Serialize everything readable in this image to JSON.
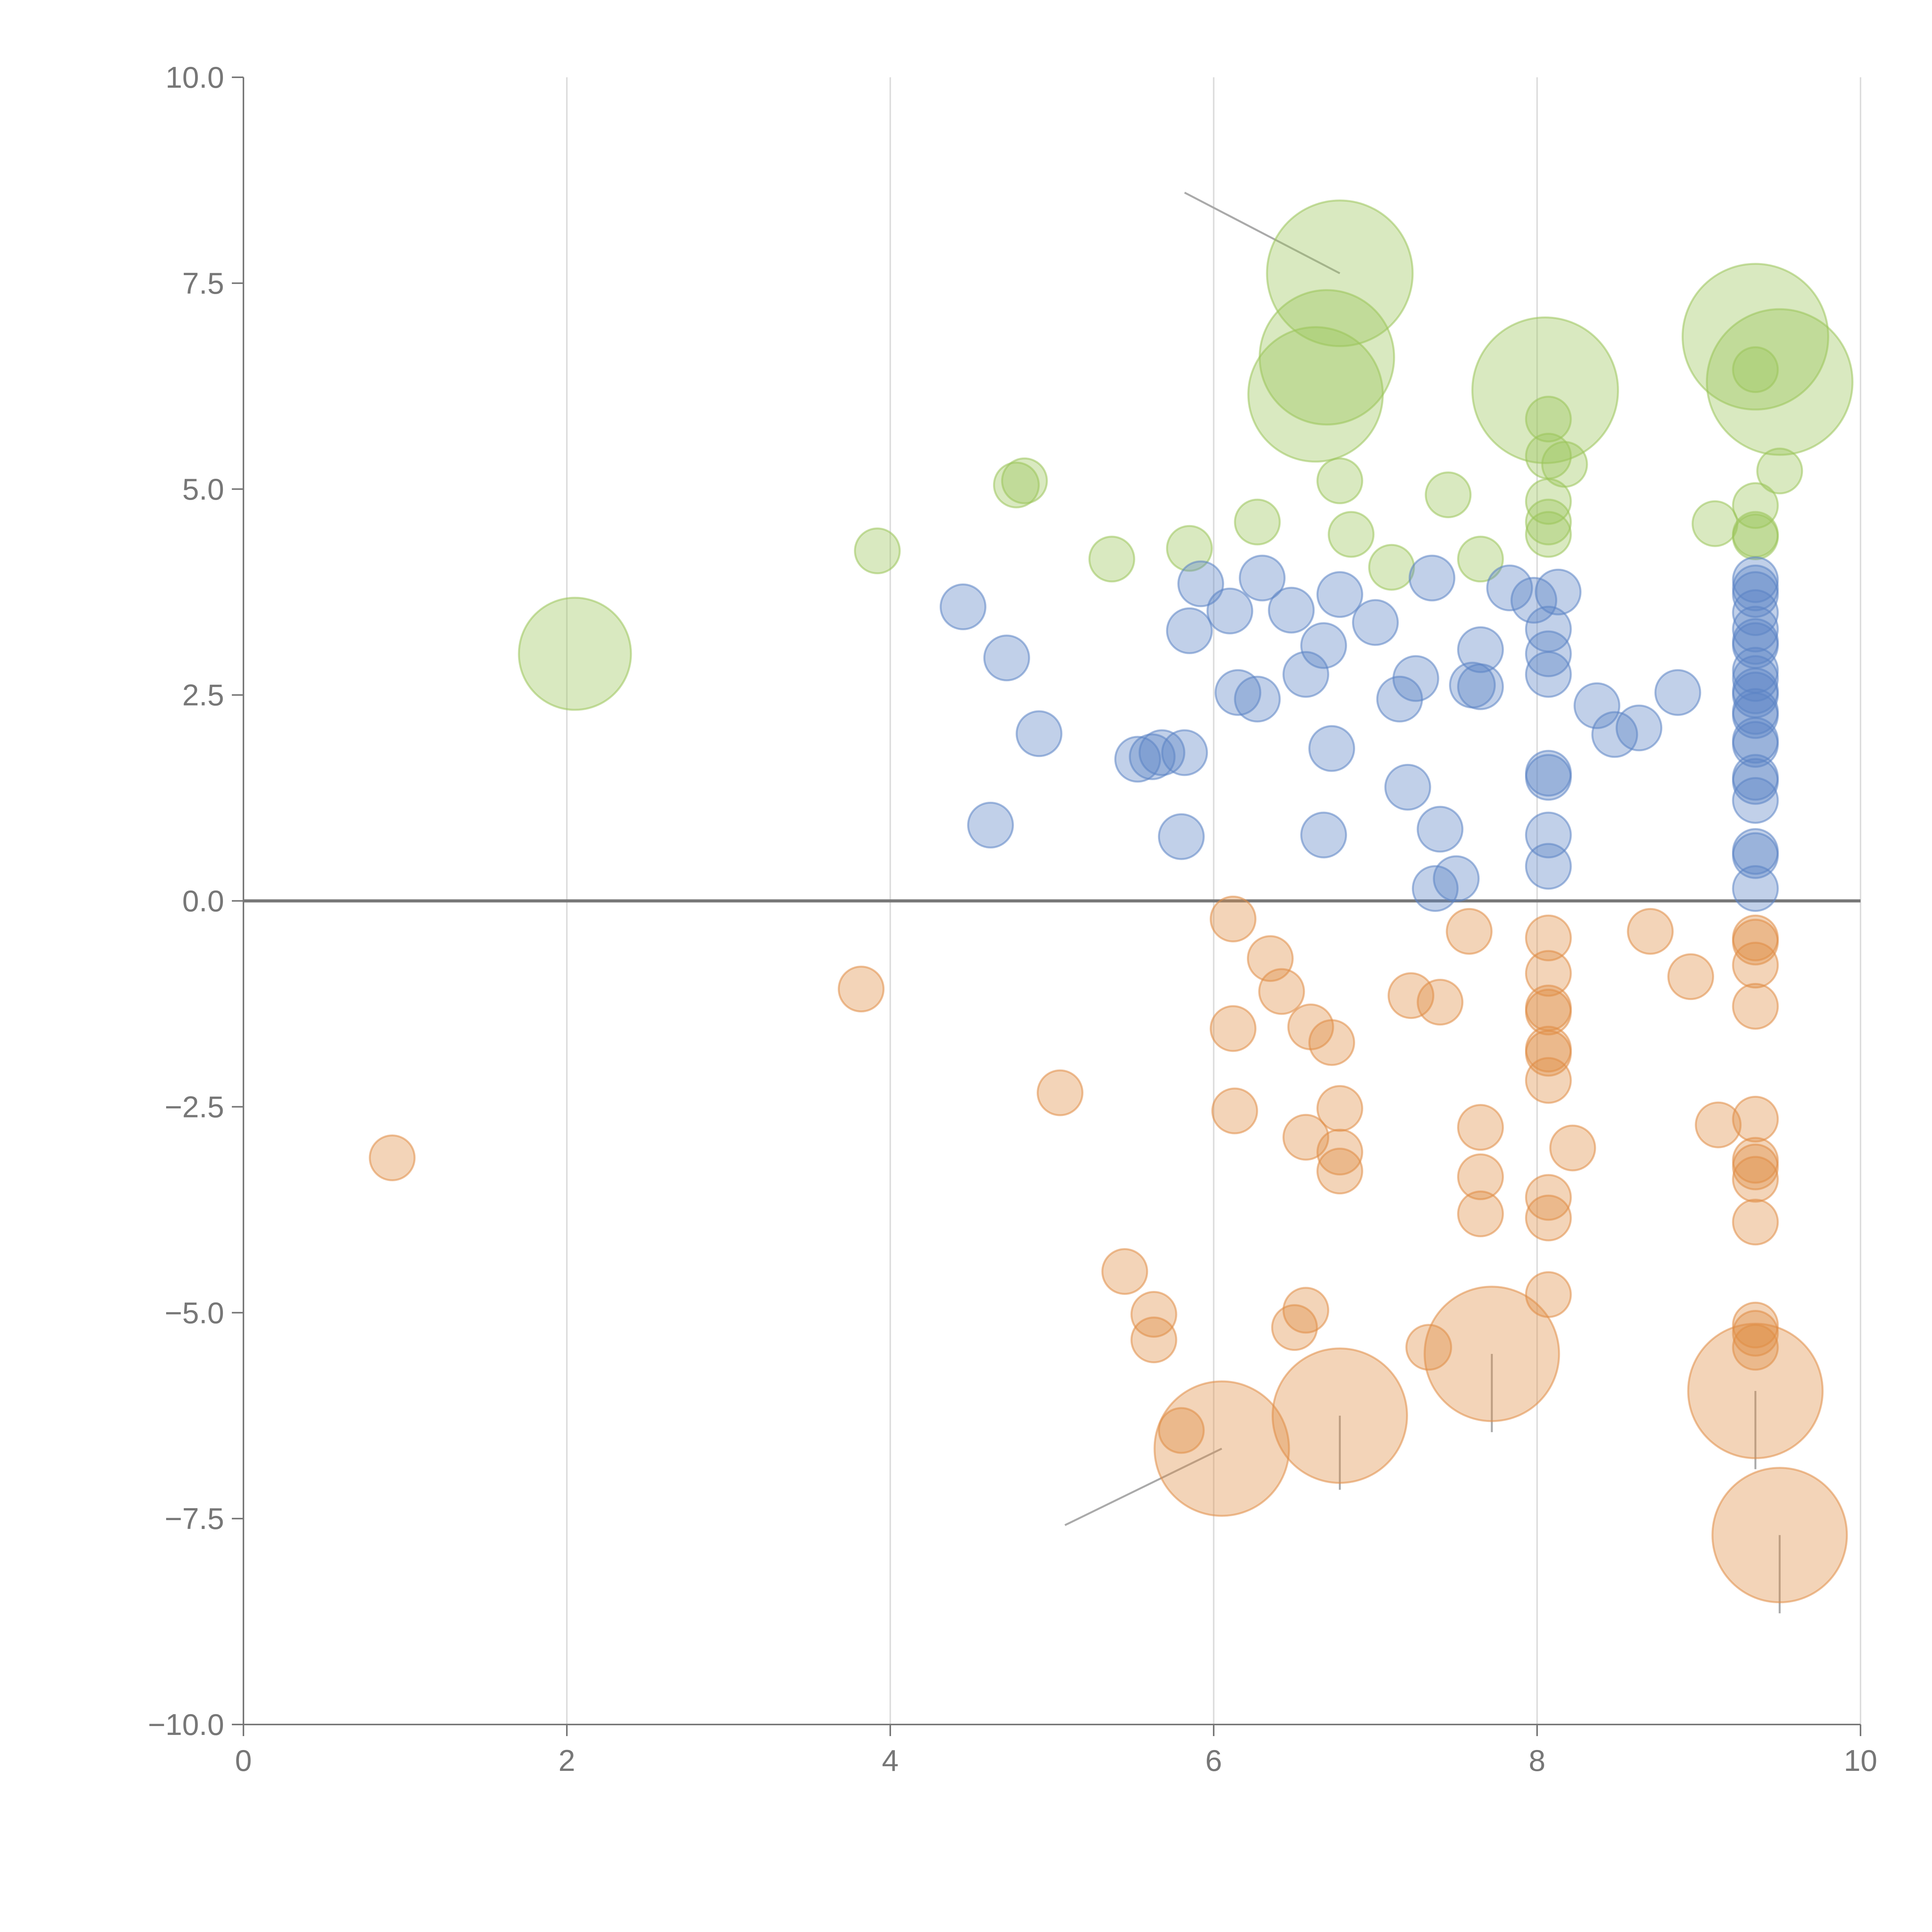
{
  "chart_data": {
    "type": "scatter",
    "title": "",
    "xlabel": "",
    "ylabel": "",
    "xlim": [
      0,
      10
    ],
    "ylim": [
      -10,
      10
    ],
    "grid": "vertical",
    "x_ticks": [
      "0",
      "2",
      "4",
      "6",
      "8",
      "10"
    ],
    "x_tick_values": [
      0,
      2,
      4,
      6,
      8,
      10
    ],
    "y_ticks": [
      "10.0",
      "7.5",
      "5.0",
      "2.5",
      "0.0",
      "−2.5",
      "−5.0",
      "−7.5",
      "−10.0"
    ],
    "y_tick_values": [
      10,
      7.5,
      5,
      2.5,
      0,
      -2.5,
      -5,
      -7.5,
      -10
    ],
    "colors": {
      "green": "#9bc45a",
      "blue": "#5b84c4",
      "orange": "#e08d45",
      "axis": "#777777",
      "grid": "#dddddd",
      "zero_line": "#777777",
      "leader_line": "#aaaaaa"
    },
    "series": [
      {
        "name": "green",
        "color": "#9bc45a",
        "points": [
          {
            "x": 2.05,
            "y": 3.0,
            "size": 10
          },
          {
            "x": 3.92,
            "y": 4.25,
            "size": 4
          },
          {
            "x": 4.78,
            "y": 5.05,
            "size": 4
          },
          {
            "x": 4.83,
            "y": 5.1,
            "size": 4
          },
          {
            "x": 5.37,
            "y": 4.15,
            "size": 4
          },
          {
            "x": 5.85,
            "y": 4.28,
            "size": 4
          },
          {
            "x": 6.27,
            "y": 4.6,
            "size": 4
          },
          {
            "x": 6.63,
            "y": 6.15,
            "size": 12
          },
          {
            "x": 6.7,
            "y": 6.6,
            "size": 12
          },
          {
            "x": 6.78,
            "y": 7.62,
            "size": 13
          },
          {
            "x": 6.78,
            "y": 5.1,
            "size": 4
          },
          {
            "x": 6.85,
            "y": 4.45,
            "size": 4
          },
          {
            "x": 7.1,
            "y": 4.05,
            "size": 4
          },
          {
            "x": 7.45,
            "y": 4.93,
            "size": 4
          },
          {
            "x": 7.65,
            "y": 4.15,
            "size": 4
          },
          {
            "x": 8.05,
            "y": 6.2,
            "size": 13
          },
          {
            "x": 8.07,
            "y": 5.85,
            "size": 4
          },
          {
            "x": 8.07,
            "y": 5.4,
            "size": 4
          },
          {
            "x": 8.07,
            "y": 4.85,
            "size": 4
          },
          {
            "x": 8.07,
            "y": 4.6,
            "size": 4
          },
          {
            "x": 8.07,
            "y": 4.45,
            "size": 4
          },
          {
            "x": 8.17,
            "y": 5.3,
            "size": 4
          },
          {
            "x": 9.1,
            "y": 4.58,
            "size": 4
          },
          {
            "x": 9.35,
            "y": 6.85,
            "size": 13
          },
          {
            "x": 9.35,
            "y": 6.45,
            "size": 4
          },
          {
            "x": 9.35,
            "y": 4.8,
            "size": 4
          },
          {
            "x": 9.35,
            "y": 4.45,
            "size": 4
          },
          {
            "x": 9.35,
            "y": 4.42,
            "size": 4
          },
          {
            "x": 9.5,
            "y": 6.3,
            "size": 13
          },
          {
            "x": 9.5,
            "y": 5.22,
            "size": 4
          }
        ]
      },
      {
        "name": "blue",
        "color": "#5b84c4",
        "points": [
          {
            "x": 4.45,
            "y": 3.57,
            "size": 4
          },
          {
            "x": 4.62,
            "y": 0.92,
            "size": 4
          },
          {
            "x": 4.72,
            "y": 2.95,
            "size": 4
          },
          {
            "x": 4.92,
            "y": 2.03,
            "size": 4
          },
          {
            "x": 5.53,
            "y": 1.72,
            "size": 4
          },
          {
            "x": 5.62,
            "y": 1.75,
            "size": 4
          },
          {
            "x": 5.68,
            "y": 1.8,
            "size": 4
          },
          {
            "x": 5.8,
            "y": 0.78,
            "size": 4
          },
          {
            "x": 5.82,
            "y": 1.8,
            "size": 4
          },
          {
            "x": 5.85,
            "y": 3.28,
            "size": 4
          },
          {
            "x": 5.92,
            "y": 3.85,
            "size": 4
          },
          {
            "x": 6.1,
            "y": 3.52,
            "size": 4
          },
          {
            "x": 6.15,
            "y": 2.53,
            "size": 4
          },
          {
            "x": 6.27,
            "y": 2.45,
            "size": 4
          },
          {
            "x": 6.3,
            "y": 3.92,
            "size": 4
          },
          {
            "x": 6.48,
            "y": 3.53,
            "size": 4
          },
          {
            "x": 6.57,
            "y": 2.75,
            "size": 4
          },
          {
            "x": 6.68,
            "y": 3.1,
            "size": 4
          },
          {
            "x": 6.68,
            "y": 0.8,
            "size": 4
          },
          {
            "x": 6.73,
            "y": 1.85,
            "size": 4
          },
          {
            "x": 6.78,
            "y": 3.72,
            "size": 4
          },
          {
            "x": 7.0,
            "y": 3.38,
            "size": 4
          },
          {
            "x": 7.15,
            "y": 2.45,
            "size": 4
          },
          {
            "x": 7.2,
            "y": 1.38,
            "size": 4
          },
          {
            "x": 7.25,
            "y": 2.7,
            "size": 4
          },
          {
            "x": 7.35,
            "y": 3.92,
            "size": 4
          },
          {
            "x": 7.37,
            "y": 0.15,
            "size": 4
          },
          {
            "x": 7.4,
            "y": 0.87,
            "size": 4
          },
          {
            "x": 7.5,
            "y": 0.27,
            "size": 4
          },
          {
            "x": 7.6,
            "y": 2.62,
            "size": 4
          },
          {
            "x": 7.65,
            "y": 2.6,
            "size": 4
          },
          {
            "x": 7.65,
            "y": 3.05,
            "size": 4
          },
          {
            "x": 7.83,
            "y": 3.8,
            "size": 4
          },
          {
            "x": 7.98,
            "y": 3.65,
            "size": 4
          },
          {
            "x": 8.07,
            "y": 3.3,
            "size": 4
          },
          {
            "x": 8.07,
            "y": 3.0,
            "size": 4
          },
          {
            "x": 8.07,
            "y": 2.75,
            "size": 4
          },
          {
            "x": 8.07,
            "y": 1.55,
            "size": 4
          },
          {
            "x": 8.07,
            "y": 1.5,
            "size": 4
          },
          {
            "x": 8.07,
            "y": 0.8,
            "size": 4
          },
          {
            "x": 8.07,
            "y": 0.42,
            "size": 4
          },
          {
            "x": 8.13,
            "y": 3.75,
            "size": 4
          },
          {
            "x": 8.37,
            "y": 2.37,
            "size": 4
          },
          {
            "x": 8.48,
            "y": 2.02,
            "size": 4
          },
          {
            "x": 8.63,
            "y": 2.1,
            "size": 4
          },
          {
            "x": 8.87,
            "y": 2.53,
            "size": 4
          },
          {
            "x": 9.35,
            "y": 3.9,
            "size": 4
          },
          {
            "x": 9.35,
            "y": 3.8,
            "size": 4
          },
          {
            "x": 9.35,
            "y": 3.72,
            "size": 4
          },
          {
            "x": 9.35,
            "y": 3.5,
            "size": 4
          },
          {
            "x": 9.35,
            "y": 3.3,
            "size": 4
          },
          {
            "x": 9.35,
            "y": 3.15,
            "size": 4
          },
          {
            "x": 9.35,
            "y": 3.1,
            "size": 4
          },
          {
            "x": 9.35,
            "y": 2.8,
            "size": 4
          },
          {
            "x": 9.35,
            "y": 2.7,
            "size": 4
          },
          {
            "x": 9.35,
            "y": 2.55,
            "size": 4
          },
          {
            "x": 9.35,
            "y": 2.5,
            "size": 4
          },
          {
            "x": 9.35,
            "y": 2.3,
            "size": 4
          },
          {
            "x": 9.35,
            "y": 2.25,
            "size": 4
          },
          {
            "x": 9.35,
            "y": 1.95,
            "size": 4
          },
          {
            "x": 9.35,
            "y": 1.9,
            "size": 4
          },
          {
            "x": 9.35,
            "y": 1.5,
            "size": 4
          },
          {
            "x": 9.35,
            "y": 1.45,
            "size": 4
          },
          {
            "x": 9.35,
            "y": 1.22,
            "size": 4
          },
          {
            "x": 9.35,
            "y": 0.6,
            "size": 4
          },
          {
            "x": 9.35,
            "y": 0.55,
            "size": 4
          },
          {
            "x": 9.35,
            "y": 0.15,
            "size": 4
          }
        ]
      },
      {
        "name": "orange",
        "color": "#e08d45",
        "points": [
          {
            "x": 0.92,
            "y": -3.12,
            "size": 4
          },
          {
            "x": 3.82,
            "y": -1.07,
            "size": 4
          },
          {
            "x": 5.05,
            "y": -2.33,
            "size": 4
          },
          {
            "x": 5.45,
            "y": -4.5,
            "size": 4
          },
          {
            "x": 5.63,
            "y": -5.02,
            "size": 4
          },
          {
            "x": 5.63,
            "y": -5.33,
            "size": 4
          },
          {
            "x": 5.8,
            "y": -6.43,
            "size": 4
          },
          {
            "x": 6.05,
            "y": -6.65,
            "size": 12
          },
          {
            "x": 6.12,
            "y": -0.22,
            "size": 4
          },
          {
            "x": 6.12,
            "y": -1.55,
            "size": 4
          },
          {
            "x": 6.13,
            "y": -2.55,
            "size": 4
          },
          {
            "x": 6.35,
            "y": -0.7,
            "size": 4
          },
          {
            "x": 6.42,
            "y": -1.1,
            "size": 4
          },
          {
            "x": 6.5,
            "y": -5.18,
            "size": 4
          },
          {
            "x": 6.57,
            "y": -2.87,
            "size": 4
          },
          {
            "x": 6.57,
            "y": -4.97,
            "size": 4
          },
          {
            "x": 6.6,
            "y": -1.53,
            "size": 4
          },
          {
            "x": 6.73,
            "y": -1.72,
            "size": 4
          },
          {
            "x": 6.78,
            "y": -2.52,
            "size": 4
          },
          {
            "x": 6.78,
            "y": -3.05,
            "size": 4
          },
          {
            "x": 6.78,
            "y": -3.28,
            "size": 4
          },
          {
            "x": 6.78,
            "y": -6.25,
            "size": 12
          },
          {
            "x": 7.22,
            "y": -1.15,
            "size": 4
          },
          {
            "x": 7.33,
            "y": -5.42,
            "size": 4
          },
          {
            "x": 7.4,
            "y": -1.23,
            "size": 4
          },
          {
            "x": 7.58,
            "y": -0.37,
            "size": 4
          },
          {
            "x": 7.65,
            "y": -2.75,
            "size": 4
          },
          {
            "x": 7.65,
            "y": -3.35,
            "size": 4
          },
          {
            "x": 7.65,
            "y": -3.8,
            "size": 4
          },
          {
            "x": 7.72,
            "y": -5.5,
            "size": 12
          },
          {
            "x": 8.07,
            "y": -0.45,
            "size": 4
          },
          {
            "x": 8.07,
            "y": -0.88,
            "size": 4
          },
          {
            "x": 8.07,
            "y": -1.3,
            "size": 4
          },
          {
            "x": 8.07,
            "y": -1.35,
            "size": 4
          },
          {
            "x": 8.07,
            "y": -1.8,
            "size": 4
          },
          {
            "x": 8.07,
            "y": -1.85,
            "size": 4
          },
          {
            "x": 8.07,
            "y": -2.18,
            "size": 4
          },
          {
            "x": 8.07,
            "y": -3.6,
            "size": 4
          },
          {
            "x": 8.07,
            "y": -3.85,
            "size": 4
          },
          {
            "x": 8.07,
            "y": -4.78,
            "size": 4
          },
          {
            "x": 8.22,
            "y": -3.0,
            "size": 4
          },
          {
            "x": 8.7,
            "y": -0.37,
            "size": 4
          },
          {
            "x": 8.95,
            "y": -0.92,
            "size": 4
          },
          {
            "x": 9.12,
            "y": -2.72,
            "size": 4
          },
          {
            "x": 9.35,
            "y": -0.45,
            "size": 4
          },
          {
            "x": 9.35,
            "y": -0.5,
            "size": 4
          },
          {
            "x": 9.35,
            "y": -0.78,
            "size": 4
          },
          {
            "x": 9.35,
            "y": -1.28,
            "size": 4
          },
          {
            "x": 9.35,
            "y": -2.65,
            "size": 4
          },
          {
            "x": 9.35,
            "y": -3.15,
            "size": 4
          },
          {
            "x": 9.35,
            "y": -3.23,
            "size": 4
          },
          {
            "x": 9.35,
            "y": -3.38,
            "size": 4
          },
          {
            "x": 9.35,
            "y": -3.9,
            "size": 4
          },
          {
            "x": 9.35,
            "y": -5.15,
            "size": 4
          },
          {
            "x": 9.35,
            "y": -5.25,
            "size": 4
          },
          {
            "x": 9.35,
            "y": -5.42,
            "size": 4
          },
          {
            "x": 9.35,
            "y": -5.95,
            "size": 12
          },
          {
            "x": 9.5,
            "y": -7.7,
            "size": 12
          }
        ]
      }
    ],
    "leader_lines": [
      {
        "x1": 6.78,
        "y1": 7.62,
        "x2": 5.82,
        "y2": 8.6
      },
      {
        "x1": 6.05,
        "y1": -6.65,
        "x2": 5.08,
        "y2": -7.58
      },
      {
        "x1": 6.78,
        "y1": -6.25,
        "x2": 6.78,
        "y2": -7.15
      },
      {
        "x1": 7.72,
        "y1": -5.5,
        "x2": 7.72,
        "y2": -6.45
      },
      {
        "x1": 9.35,
        "y1": -5.95,
        "x2": 9.35,
        "y2": -6.9
      },
      {
        "x1": 9.5,
        "y1": -7.7,
        "x2": 9.5,
        "y2": -8.65
      }
    ]
  }
}
